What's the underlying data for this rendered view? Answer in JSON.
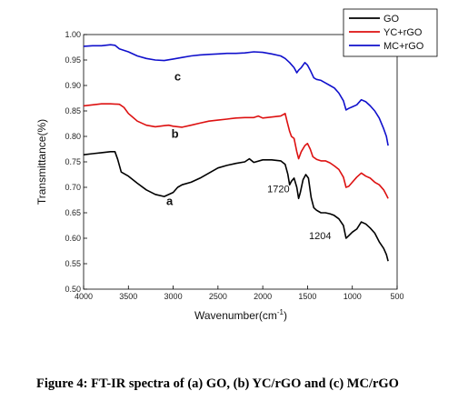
{
  "chart_data": {
    "type": "line",
    "xlabel": "Wavenumber(cm",
    "xlabel_sup": "-1",
    "xlabel_end": ")",
    "ylabel": "Transmittance(%)",
    "xlim": [
      4000,
      500
    ],
    "ylim": [
      0.5,
      1.0
    ],
    "x_reversed": true,
    "grid": false,
    "legend_position": "top-right",
    "x_ticks": [
      4000,
      3500,
      3000,
      2500,
      2000,
      1500,
      1000,
      500
    ],
    "x_tick_labels": [
      "4000",
      "3500",
      "3000",
      "2500",
      "2000",
      "1500",
      "1000",
      "500"
    ],
    "y_ticks": [
      0.5,
      0.55,
      0.6,
      0.65,
      0.7,
      0.75,
      0.8,
      0.85,
      0.9,
      0.95,
      1.0
    ],
    "y_tick_labels": [
      "0.50",
      "0.55",
      "0.60",
      "0.65",
      "0.70",
      "0.75",
      "0.80",
      "0.85",
      "0.90",
      "0.95",
      "1.00"
    ],
    "series": [
      {
        "name": "GO",
        "color": "#000000",
        "points": [
          [
            4000,
            0.764
          ],
          [
            3900,
            0.766
          ],
          [
            3800,
            0.768
          ],
          [
            3700,
            0.77
          ],
          [
            3650,
            0.77
          ],
          [
            3620,
            0.755
          ],
          [
            3580,
            0.73
          ],
          [
            3500,
            0.722
          ],
          [
            3400,
            0.708
          ],
          [
            3300,
            0.695
          ],
          [
            3200,
            0.686
          ],
          [
            3100,
            0.682
          ],
          [
            3000,
            0.69
          ],
          [
            2950,
            0.7
          ],
          [
            2900,
            0.705
          ],
          [
            2800,
            0.71
          ],
          [
            2700,
            0.718
          ],
          [
            2600,
            0.728
          ],
          [
            2500,
            0.738
          ],
          [
            2400,
            0.743
          ],
          [
            2300,
            0.747
          ],
          [
            2200,
            0.75
          ],
          [
            2150,
            0.756
          ],
          [
            2100,
            0.749
          ],
          [
            2000,
            0.754
          ],
          [
            1900,
            0.754
          ],
          [
            1800,
            0.752
          ],
          [
            1750,
            0.745
          ],
          [
            1720,
            0.726
          ],
          [
            1700,
            0.705
          ],
          [
            1680,
            0.712
          ],
          [
            1650,
            0.718
          ],
          [
            1620,
            0.7
          ],
          [
            1600,
            0.678
          ],
          [
            1580,
            0.69
          ],
          [
            1550,
            0.715
          ],
          [
            1520,
            0.725
          ],
          [
            1490,
            0.718
          ],
          [
            1460,
            0.68
          ],
          [
            1430,
            0.66
          ],
          [
            1400,
            0.655
          ],
          [
            1350,
            0.65
          ],
          [
            1300,
            0.65
          ],
          [
            1250,
            0.648
          ],
          [
            1204,
            0.645
          ],
          [
            1150,
            0.638
          ],
          [
            1100,
            0.625
          ],
          [
            1070,
            0.6
          ],
          [
            1040,
            0.605
          ],
          [
            1000,
            0.612
          ],
          [
            950,
            0.618
          ],
          [
            900,
            0.632
          ],
          [
            850,
            0.628
          ],
          [
            800,
            0.62
          ],
          [
            750,
            0.61
          ],
          [
            700,
            0.593
          ],
          [
            650,
            0.58
          ],
          [
            620,
            0.568
          ],
          [
            600,
            0.555
          ]
        ]
      },
      {
        "name": "YC+rGO",
        "color": "#dd1111",
        "points": [
          [
            4000,
            0.86
          ],
          [
            3900,
            0.862
          ],
          [
            3800,
            0.864
          ],
          [
            3700,
            0.864
          ],
          [
            3600,
            0.863
          ],
          [
            3550,
            0.857
          ],
          [
            3500,
            0.845
          ],
          [
            3400,
            0.83
          ],
          [
            3300,
            0.822
          ],
          [
            3200,
            0.819
          ],
          [
            3100,
            0.821
          ],
          [
            3050,
            0.822
          ],
          [
            3000,
            0.82
          ],
          [
            2900,
            0.818
          ],
          [
            2800,
            0.822
          ],
          [
            2700,
            0.826
          ],
          [
            2600,
            0.83
          ],
          [
            2500,
            0.832
          ],
          [
            2400,
            0.834
          ],
          [
            2300,
            0.836
          ],
          [
            2200,
            0.837
          ],
          [
            2100,
            0.837
          ],
          [
            2050,
            0.84
          ],
          [
            2000,
            0.836
          ],
          [
            1900,
            0.838
          ],
          [
            1800,
            0.84
          ],
          [
            1750,
            0.845
          ],
          [
            1730,
            0.83
          ],
          [
            1700,
            0.81
          ],
          [
            1680,
            0.8
          ],
          [
            1650,
            0.796
          ],
          [
            1620,
            0.77
          ],
          [
            1600,
            0.756
          ],
          [
            1570,
            0.77
          ],
          [
            1530,
            0.782
          ],
          [
            1500,
            0.786
          ],
          [
            1470,
            0.775
          ],
          [
            1440,
            0.76
          ],
          [
            1400,
            0.755
          ],
          [
            1350,
            0.752
          ],
          [
            1300,
            0.752
          ],
          [
            1250,
            0.748
          ],
          [
            1200,
            0.742
          ],
          [
            1150,
            0.735
          ],
          [
            1100,
            0.72
          ],
          [
            1070,
            0.7
          ],
          [
            1040,
            0.702
          ],
          [
            1000,
            0.71
          ],
          [
            950,
            0.72
          ],
          [
            900,
            0.728
          ],
          [
            850,
            0.722
          ],
          [
            800,
            0.718
          ],
          [
            750,
            0.71
          ],
          [
            700,
            0.705
          ],
          [
            650,
            0.695
          ],
          [
            620,
            0.685
          ],
          [
            600,
            0.678
          ]
        ]
      },
      {
        "name": "MC+rGO",
        "color": "#1010cc",
        "points": [
          [
            4000,
            0.977
          ],
          [
            3900,
            0.978
          ],
          [
            3800,
            0.978
          ],
          [
            3700,
            0.98
          ],
          [
            3650,
            0.979
          ],
          [
            3600,
            0.972
          ],
          [
            3500,
            0.966
          ],
          [
            3400,
            0.958
          ],
          [
            3300,
            0.953
          ],
          [
            3200,
            0.95
          ],
          [
            3100,
            0.949
          ],
          [
            3000,
            0.952
          ],
          [
            2900,
            0.955
          ],
          [
            2800,
            0.958
          ],
          [
            2700,
            0.96
          ],
          [
            2600,
            0.961
          ],
          [
            2500,
            0.962
          ],
          [
            2400,
            0.963
          ],
          [
            2300,
            0.963
          ],
          [
            2200,
            0.964
          ],
          [
            2100,
            0.966
          ],
          [
            2000,
            0.965
          ],
          [
            1900,
            0.962
          ],
          [
            1800,
            0.958
          ],
          [
            1750,
            0.953
          ],
          [
            1700,
            0.945
          ],
          [
            1650,
            0.935
          ],
          [
            1620,
            0.925
          ],
          [
            1600,
            0.93
          ],
          [
            1570,
            0.935
          ],
          [
            1530,
            0.945
          ],
          [
            1500,
            0.94
          ],
          [
            1470,
            0.93
          ],
          [
            1430,
            0.915
          ],
          [
            1400,
            0.912
          ],
          [
            1350,
            0.91
          ],
          [
            1300,
            0.905
          ],
          [
            1250,
            0.9
          ],
          [
            1200,
            0.895
          ],
          [
            1150,
            0.885
          ],
          [
            1100,
            0.87
          ],
          [
            1070,
            0.852
          ],
          [
            1040,
            0.855
          ],
          [
            1000,
            0.858
          ],
          [
            950,
            0.862
          ],
          [
            900,
            0.872
          ],
          [
            850,
            0.868
          ],
          [
            800,
            0.86
          ],
          [
            750,
            0.85
          ],
          [
            700,
            0.836
          ],
          [
            650,
            0.815
          ],
          [
            620,
            0.8
          ],
          [
            600,
            0.782
          ]
        ]
      }
    ],
    "annotations": [
      {
        "text": "c",
        "x": 2950,
        "y": 0.91,
        "style": "letter"
      },
      {
        "text": "b",
        "x": 2980,
        "y": 0.797,
        "style": "letter"
      },
      {
        "text": "a",
        "x": 3040,
        "y": 0.665,
        "style": "letter"
      },
      {
        "text": "1720",
        "x": 1825,
        "y": 0.69,
        "style": "number"
      },
      {
        "text": "1204",
        "x": 1360,
        "y": 0.598,
        "style": "number"
      }
    ]
  },
  "caption": "Figure 4: FT-IR spectra of (a) GO, (b) YC/rGO and (c)  MC/rGO"
}
